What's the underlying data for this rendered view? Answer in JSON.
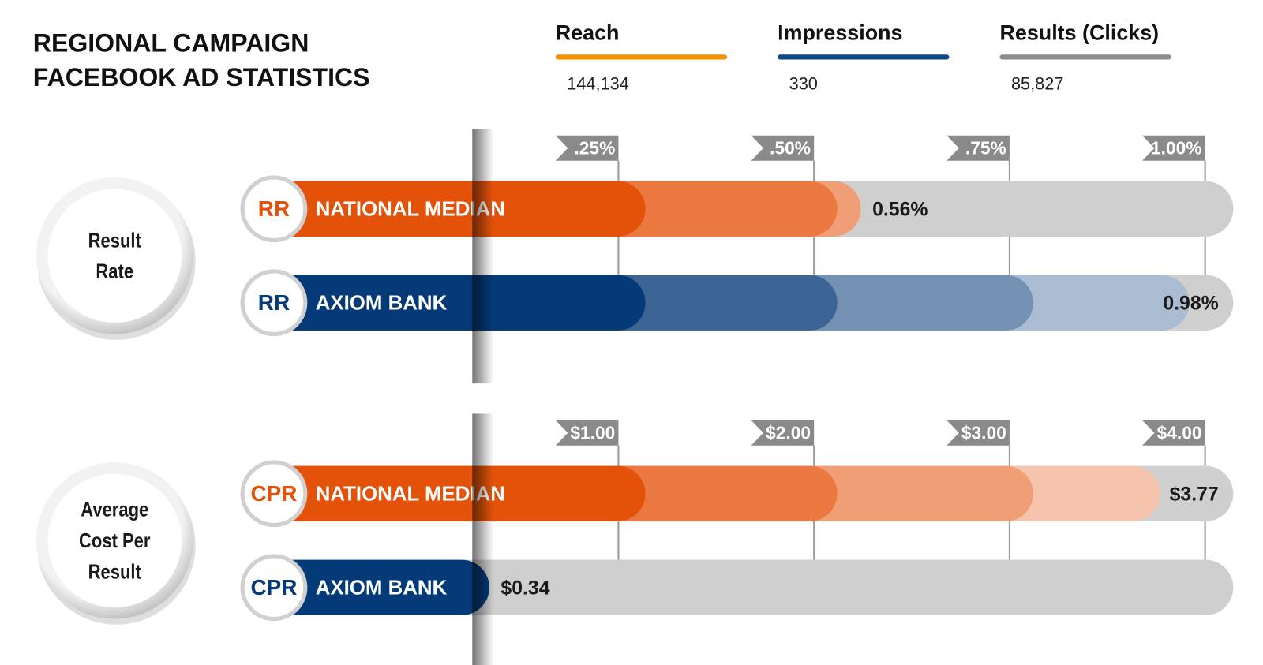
{
  "header": {
    "title": [
      "REGIONAL CAMPAIGN",
      "FACEBOOK AD STATISTICS"
    ],
    "stats": [
      {
        "label": "Reach",
        "value": "144,134",
        "color": "#f39200"
      },
      {
        "label": "Impressions",
        "value": "330",
        "color": "#0b4a86"
      },
      {
        "label": "Results (Clicks)",
        "value": "85,827",
        "color": "#8c8c8c"
      }
    ]
  },
  "chart_data": [
    {
      "type": "bar",
      "orientation": "horizontal",
      "title": "Result Rate",
      "badge": "RR",
      "categories": [
        "NATIONAL MEDIAN",
        "AXIOM BANK"
      ],
      "values": [
        0.56,
        0.98
      ],
      "value_labels": [
        "0.56%",
        "0.98%"
      ],
      "colors": [
        "#e4520a",
        "#053a78"
      ],
      "xlim": [
        0,
        1.036
      ],
      "xticks": [
        {
          "value": 0.25,
          "label": ".25%"
        },
        {
          "value": 0.5,
          "label": ".50%"
        },
        {
          "value": 0.75,
          "label": ".75%"
        },
        {
          "value": 1.0,
          "label": "1.00%"
        }
      ]
    },
    {
      "type": "bar",
      "orientation": "horizontal",
      "title": "Average Cost Per Result",
      "badge": "CPR",
      "categories": [
        "NATIONAL MEDIAN",
        "AXIOM BANK"
      ],
      "values": [
        3.77,
        0.34
      ],
      "value_labels": [
        "$3.77",
        "$0.34"
      ],
      "colors": [
        "#e4520a",
        "#053a78"
      ],
      "xlim": [
        0,
        4.144
      ],
      "xticks": [
        {
          "value": 1,
          "label": "$1.00"
        },
        {
          "value": 2,
          "label": "$2.00"
        },
        {
          "value": 3,
          "label": "$3.00"
        },
        {
          "value": 4,
          "label": "$4.00"
        }
      ]
    }
  ]
}
